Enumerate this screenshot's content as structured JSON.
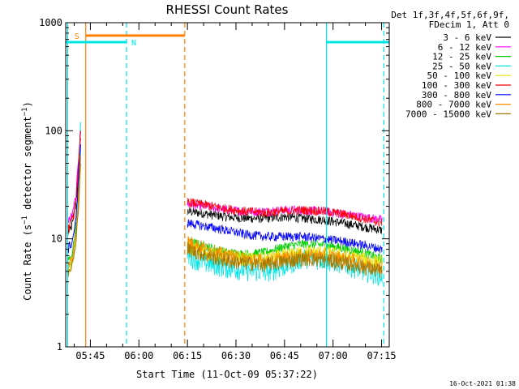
{
  "chart_data": {
    "type": "line",
    "title": "RHESSI Count Rates",
    "xlabel": "Start Time (11-Oct-09 05:37:22)",
    "ylabel_main": "Count Rate (s",
    "ylabel_sup1": "−1",
    "ylabel_mid": " detector segment",
    "ylabel_sup2": "−1",
    "ylabel_end": ")",
    "yscale": "log",
    "ylim": [
      1,
      1000
    ],
    "xlim_minutes": [
      0,
      100
    ],
    "x_ticks": [
      {
        "label": "05:45",
        "t": 7.63
      },
      {
        "label": "06:00",
        "t": 22.63
      },
      {
        "label": "06:15",
        "t": 37.63
      },
      {
        "label": "06:30",
        "t": 52.63
      },
      {
        "label": "06:45",
        "t": 67.63
      },
      {
        "label": "07:00",
        "t": 82.63
      },
      {
        "label": "07:15",
        "t": 97.63
      }
    ],
    "y_ticks": [
      {
        "label": "1",
        "v": 1
      },
      {
        "label": "10",
        "v": 10
      },
      {
        "label": "100",
        "v": 100
      },
      {
        "label": "1000",
        "v": 1000
      }
    ],
    "legend_header": [
      "Det 1f,3f,4f,5f,6f,9f,",
      "FDecim 1, Att 0"
    ],
    "series": [
      {
        "name": "3 - 6 keV",
        "color": "#000000",
        "early": [
          11,
          12,
          14,
          22,
          45,
          85
        ],
        "late": [
          18,
          17,
          16,
          15.5,
          15.5,
          16,
          15.5,
          15,
          14,
          13,
          12
        ]
      },
      {
        "name": "6 - 12 keV",
        "color": "#ff00ff",
        "early": [
          14,
          15,
          17,
          25,
          55,
          100
        ],
        "late": [
          21,
          20,
          18.5,
          18,
          18,
          18.5,
          18.5,
          18,
          17,
          16,
          15
        ]
      },
      {
        "name": "12 - 25 keV",
        "color": "#00cc00",
        "early": [
          6,
          6.5,
          8,
          13,
          30,
          60
        ],
        "late": [
          9.5,
          8.5,
          7.5,
          7.2,
          7.5,
          8.5,
          9,
          8.8,
          8.2,
          7.5,
          6.5
        ]
      },
      {
        "name": "25 - 50 keV",
        "color": "#00e5e5",
        "early": [
          5,
          5.5,
          7,
          12,
          35,
          120
        ],
        "late": [
          7,
          6,
          5.5,
          5.2,
          5,
          5.6,
          6.8,
          6.5,
          6,
          5.2,
          4.6
        ]
      },
      {
        "name": "50 - 100 keV",
        "color": "#e5e500",
        "early": [
          5,
          5.5,
          6.5,
          10,
          25,
          55
        ],
        "late": [
          8.5,
          7.5,
          7,
          6.5,
          6.5,
          7,
          7.5,
          7.5,
          7,
          6.5,
          6
        ]
      },
      {
        "name": "100 - 300 keV",
        "color": "#ff0000",
        "early": [
          12,
          13,
          15,
          24,
          50,
          100
        ],
        "late": [
          22,
          20.5,
          19,
          18,
          17.5,
          18,
          18.5,
          18,
          17,
          15.5,
          14
        ]
      },
      {
        "name": "300 - 800 keV",
        "color": "#0000ff",
        "early": [
          8,
          8.5,
          10,
          16,
          35,
          75
        ],
        "late": [
          14,
          13,
          12,
          11,
          10.5,
          10.5,
          10.5,
          10,
          9.5,
          8.8,
          8
        ]
      },
      {
        "name": "800 - 7000 keV",
        "color": "#ff8c00",
        "early": [
          5.5,
          6,
          7,
          11,
          27,
          60
        ],
        "late": [
          9.5,
          8,
          7,
          6.5,
          6.2,
          6.6,
          7,
          7,
          6.6,
          6,
          5.5
        ]
      },
      {
        "name": "7000 - 15000 keV",
        "color": "#a07800",
        "early": [
          4.5,
          5,
          6,
          9,
          22,
          50
        ],
        "late": [
          8,
          7,
          6.3,
          6,
          5.8,
          6.2,
          6.6,
          6.4,
          6,
          5.5,
          5
        ]
      }
    ],
    "early_t": [
      0.5,
      1.2,
      2.2,
      3.2,
      4.0,
      4.6
    ],
    "late_t_range": [
      37.6,
      97.8
    ],
    "attenuator_state_label": "S",
    "night_state_label": "N",
    "state_bars": [
      {
        "kind": "N",
        "color": "#00e5e5",
        "t0": 0,
        "t1": 18.8,
        "v": 660
      },
      {
        "kind": "S",
        "color": "#ff8000",
        "t0": 6.2,
        "t1": 36.8,
        "v": 760
      },
      {
        "kind": "N",
        "color": "#00e5e5",
        "t0": 80.6,
        "t1": 100,
        "v": 660
      }
    ],
    "vlines": [
      {
        "t": 0.6,
        "color": "#00e5e5",
        "dashed": false
      },
      {
        "t": 6.2,
        "color": "#ff8000",
        "dashed": false
      },
      {
        "t": 18.8,
        "color": "#00e5e5",
        "dashed": true
      },
      {
        "t": 36.8,
        "color": "#ff8000",
        "dashed": true
      },
      {
        "t": 80.6,
        "color": "#00e5e5",
        "dashed": false
      },
      {
        "t": 98.3,
        "color": "#00e5e5",
        "dashed": true
      }
    ],
    "grid": false,
    "legend_placement": "right"
  },
  "timestamp": "16-Oct-2021 01:38"
}
